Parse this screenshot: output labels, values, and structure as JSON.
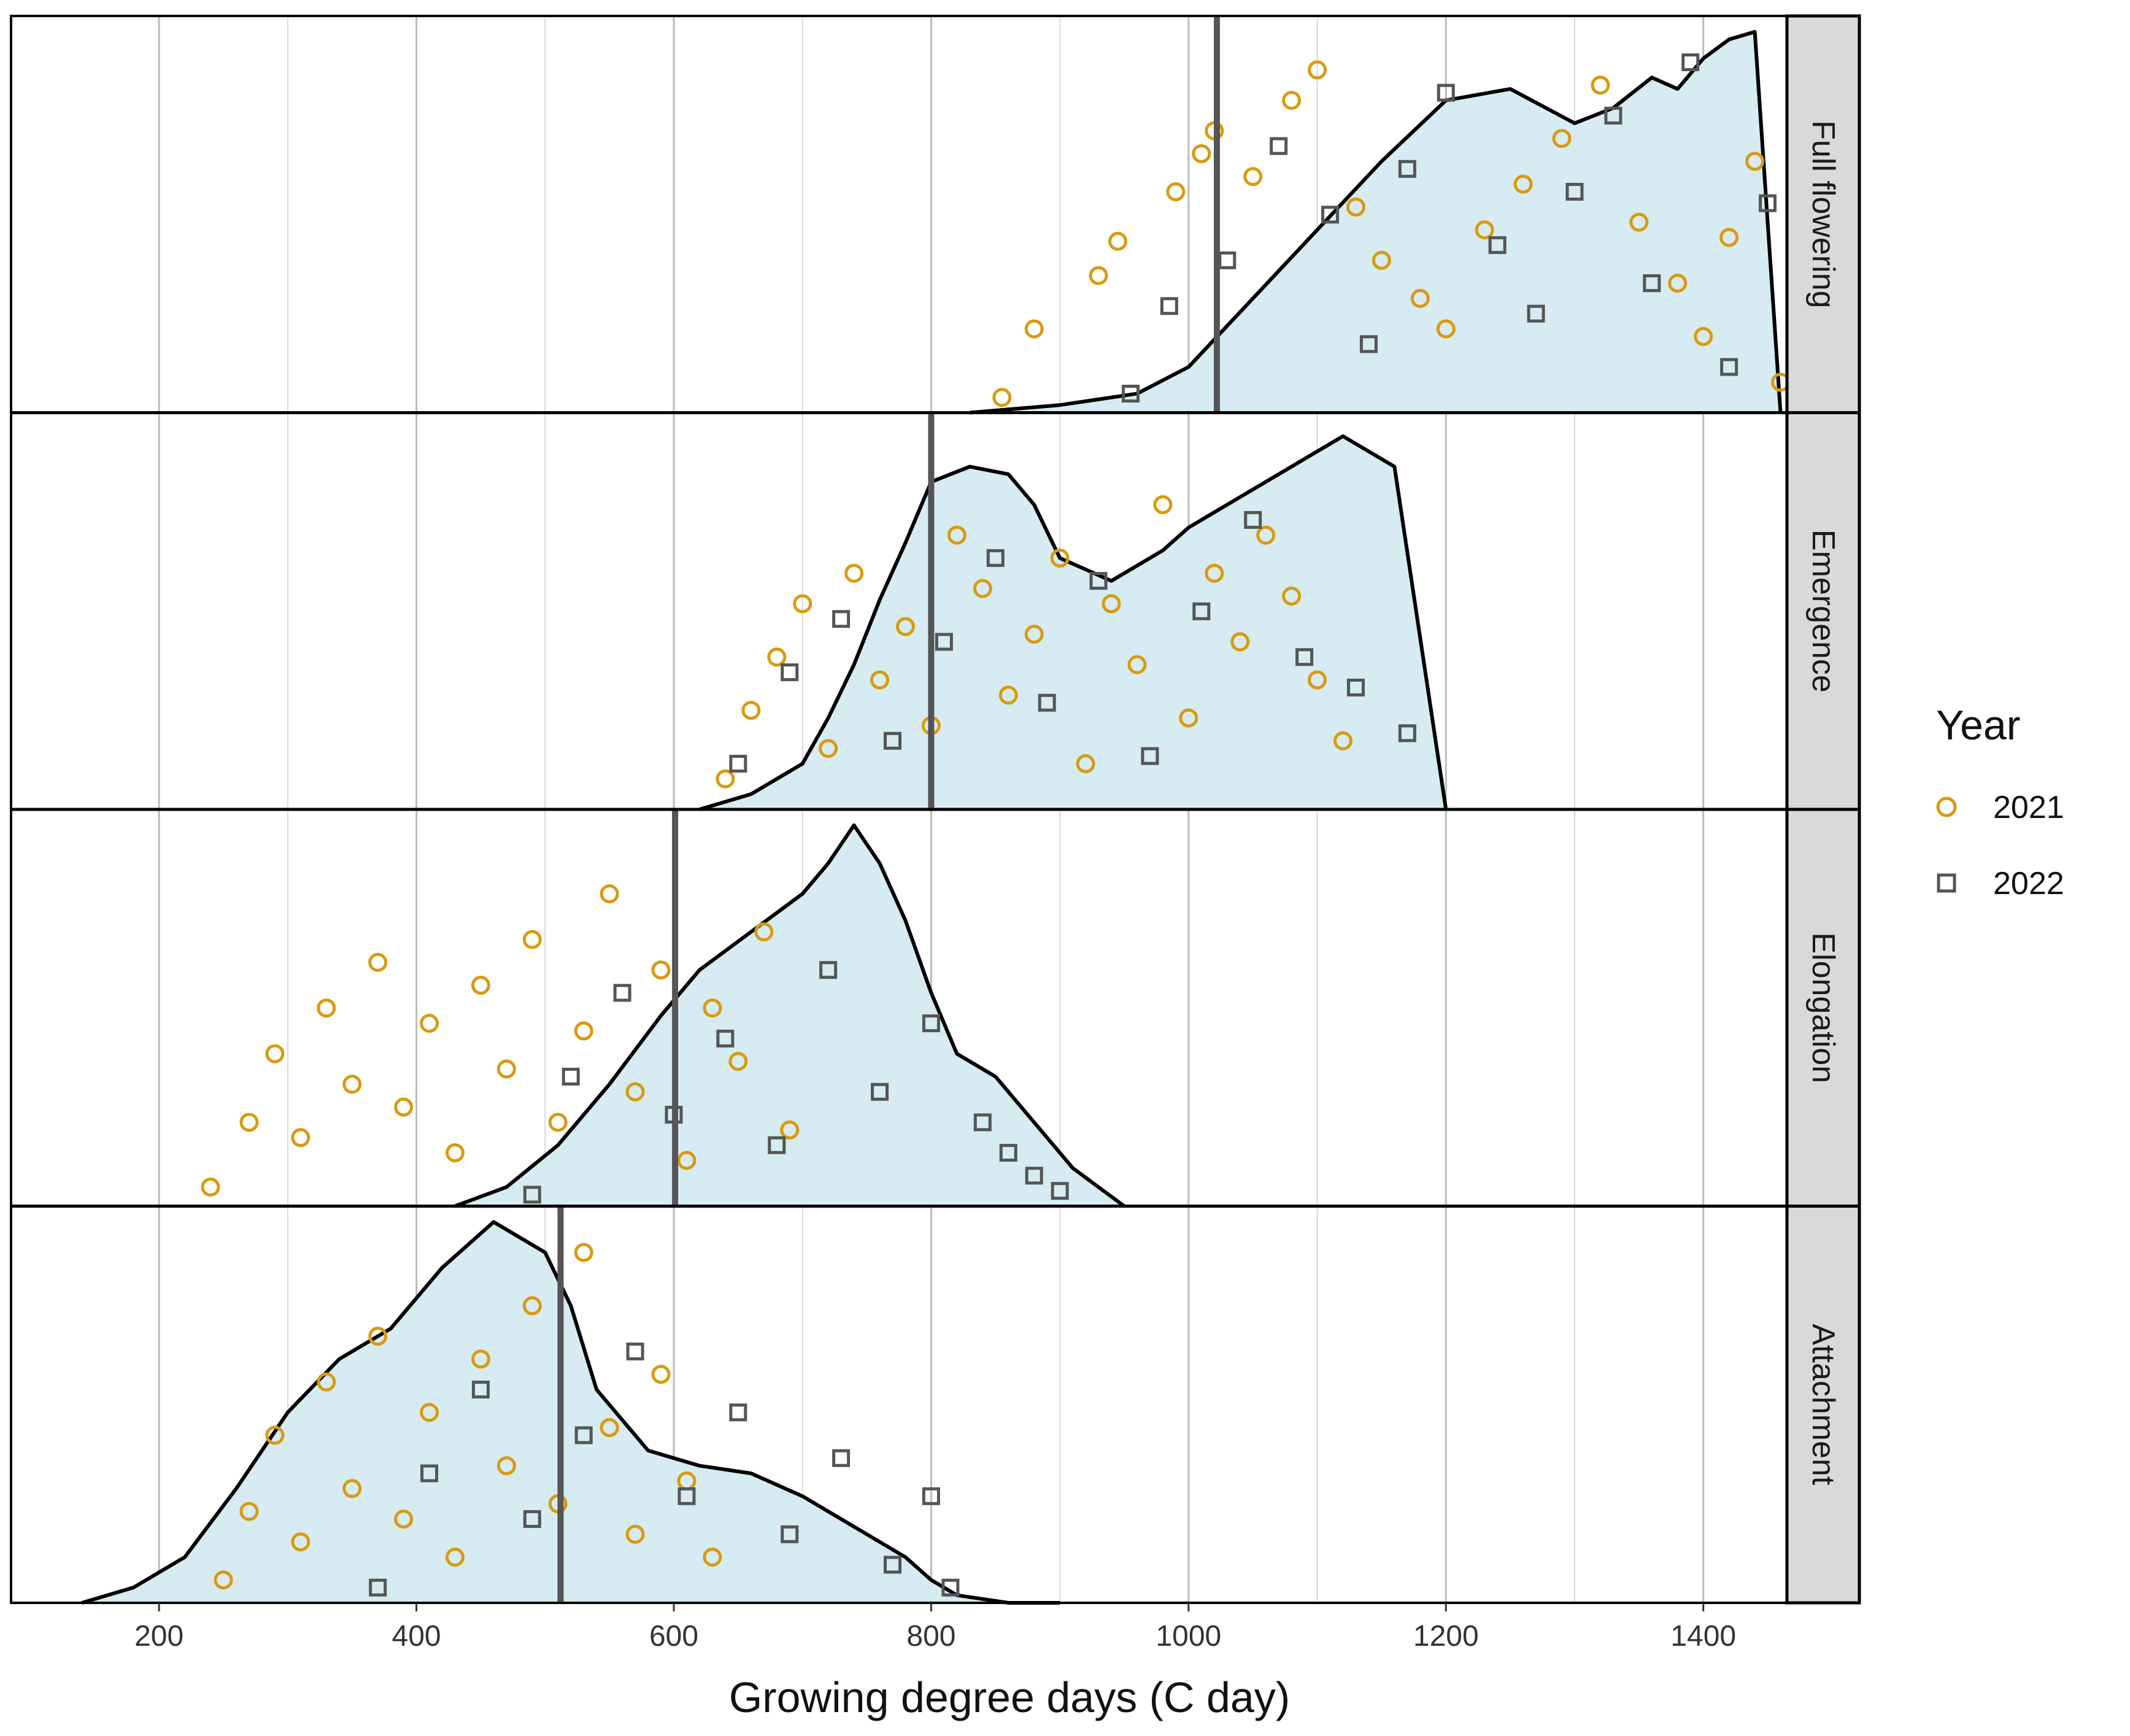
{
  "chart_data": {
    "type": "scatter",
    "subtype": "ridgeline-density-with-jittered-points",
    "title": "",
    "xlabel": "Growing degree days (C day)",
    "ylabel": "",
    "xlim": [
      85,
      1465
    ],
    "x_ticks": [
      200,
      400,
      600,
      800,
      1000,
      1200,
      1400
    ],
    "x_tick_labels": [
      "200",
      "400",
      "600",
      "800",
      "1000",
      "1200",
      "1400"
    ],
    "grid": true,
    "legend": {
      "title": "Year",
      "position": "right",
      "entries": [
        {
          "label": "2021",
          "shape": "circle",
          "color": "#d99a0f"
        },
        {
          "label": "2022",
          "shape": "square",
          "color": "#555555"
        }
      ]
    },
    "colors": {
      "density_fill": "#d6ebf2",
      "density_outline": "#000000",
      "median_line": "#555555",
      "strip_background": "#d9d9d9",
      "grid": "#bbbbbb",
      "year_2021": "#d99a0f",
      "year_2022": "#555555"
    },
    "panels": [
      {
        "stage": "Full flowering",
        "median": 1022,
        "density": {
          "x": [
            830,
            900,
            960,
            1000,
            1050,
            1100,
            1150,
            1200,
            1250,
            1300,
            1330,
            1360,
            1380,
            1400,
            1420,
            1440,
            1460
          ],
          "y": [
            0.0,
            0.02,
            0.05,
            0.12,
            0.3,
            0.48,
            0.66,
            0.82,
            0.85,
            0.76,
            0.8,
            0.88,
            0.85,
            0.93,
            0.98,
            1.0,
            0.0
          ]
        },
        "points_2021": [
          [
            855,
            0.04
          ],
          [
            880,
            0.22
          ],
          [
            930,
            0.36
          ],
          [
            945,
            0.45
          ],
          [
            990,
            0.58
          ],
          [
            1010,
            0.68
          ],
          [
            1020,
            0.74
          ],
          [
            1050,
            0.62
          ],
          [
            1080,
            0.82
          ],
          [
            1100,
            0.9
          ],
          [
            1130,
            0.54
          ],
          [
            1150,
            0.4
          ],
          [
            1180,
            0.3
          ],
          [
            1200,
            0.22
          ],
          [
            1230,
            0.48
          ],
          [
            1260,
            0.6
          ],
          [
            1290,
            0.72
          ],
          [
            1320,
            0.86
          ],
          [
            1350,
            0.5
          ],
          [
            1380,
            0.34
          ],
          [
            1400,
            0.2
          ],
          [
            1420,
            0.46
          ],
          [
            1440,
            0.66
          ],
          [
            1460,
            0.08
          ]
        ],
        "points_2022": [
          [
            955,
            0.05
          ],
          [
            985,
            0.28
          ],
          [
            1030,
            0.4
          ],
          [
            1070,
            0.7
          ],
          [
            1110,
            0.52
          ],
          [
            1140,
            0.18
          ],
          [
            1170,
            0.64
          ],
          [
            1200,
            0.84
          ],
          [
            1240,
            0.44
          ],
          [
            1270,
            0.26
          ],
          [
            1300,
            0.58
          ],
          [
            1330,
            0.78
          ],
          [
            1360,
            0.34
          ],
          [
            1390,
            0.92
          ],
          [
            1420,
            0.12
          ],
          [
            1450,
            0.55
          ]
        ]
      },
      {
        "stage": "Emergence",
        "median": 800,
        "density": {
          "x": [
            620,
            660,
            700,
            720,
            740,
            760,
            780,
            800,
            830,
            860,
            880,
            900,
            940,
            980,
            1000,
            1040,
            1080,
            1120,
            1160,
            1200
          ],
          "y": [
            0.0,
            0.04,
            0.12,
            0.24,
            0.38,
            0.55,
            0.7,
            0.86,
            0.9,
            0.88,
            0.8,
            0.66,
            0.6,
            0.68,
            0.74,
            0.82,
            0.9,
            0.98,
            0.9,
            0.0
          ]
        },
        "points_2021": [
          [
            640,
            0.08
          ],
          [
            660,
            0.26
          ],
          [
            680,
            0.4
          ],
          [
            700,
            0.54
          ],
          [
            720,
            0.16
          ],
          [
            740,
            0.62
          ],
          [
            760,
            0.34
          ],
          [
            780,
            0.48
          ],
          [
            800,
            0.22
          ],
          [
            820,
            0.72
          ],
          [
            840,
            0.58
          ],
          [
            860,
            0.3
          ],
          [
            880,
            0.46
          ],
          [
            900,
            0.66
          ],
          [
            920,
            0.12
          ],
          [
            940,
            0.54
          ],
          [
            960,
            0.38
          ],
          [
            980,
            0.8
          ],
          [
            1000,
            0.24
          ],
          [
            1020,
            0.62
          ],
          [
            1040,
            0.44
          ],
          [
            1060,
            0.72
          ],
          [
            1080,
            0.56
          ],
          [
            1100,
            0.34
          ],
          [
            1120,
            0.18
          ]
        ],
        "points_2022": [
          [
            650,
            0.12
          ],
          [
            690,
            0.36
          ],
          [
            730,
            0.5
          ],
          [
            770,
            0.18
          ],
          [
            810,
            0.44
          ],
          [
            850,
            0.66
          ],
          [
            890,
            0.28
          ],
          [
            930,
            0.6
          ],
          [
            970,
            0.14
          ],
          [
            1010,
            0.52
          ],
          [
            1050,
            0.76
          ],
          [
            1090,
            0.4
          ],
          [
            1130,
            0.32
          ],
          [
            1170,
            0.2
          ]
        ]
      },
      {
        "stage": "Elongation",
        "median": 601,
        "density": {
          "x": [
            430,
            470,
            510,
            550,
            590,
            620,
            660,
            700,
            720,
            740,
            760,
            780,
            800,
            820,
            850,
            880,
            910,
            950
          ],
          "y": [
            0.0,
            0.05,
            0.16,
            0.32,
            0.5,
            0.62,
            0.72,
            0.82,
            0.9,
            1.0,
            0.9,
            0.75,
            0.56,
            0.4,
            0.34,
            0.22,
            0.1,
            0.0
          ]
        },
        "points_2021": [
          [
            240,
            0.05
          ],
          [
            270,
            0.22
          ],
          [
            290,
            0.4
          ],
          [
            310,
            0.18
          ],
          [
            330,
            0.52
          ],
          [
            350,
            0.32
          ],
          [
            370,
            0.64
          ],
          [
            390,
            0.26
          ],
          [
            410,
            0.48
          ],
          [
            430,
            0.14
          ],
          [
            450,
            0.58
          ],
          [
            470,
            0.36
          ],
          [
            490,
            0.7
          ],
          [
            510,
            0.22
          ],
          [
            530,
            0.46
          ],
          [
            550,
            0.82
          ],
          [
            570,
            0.3
          ],
          [
            590,
            0.62
          ],
          [
            610,
            0.12
          ],
          [
            630,
            0.52
          ],
          [
            650,
            0.38
          ],
          [
            670,
            0.72
          ],
          [
            690,
            0.2
          ]
        ],
        "points_2022": [
          [
            490,
            0.03
          ],
          [
            520,
            0.34
          ],
          [
            560,
            0.56
          ],
          [
            600,
            0.24
          ],
          [
            640,
            0.44
          ],
          [
            680,
            0.16
          ],
          [
            720,
            0.62
          ],
          [
            760,
            0.3
          ],
          [
            800,
            0.48
          ],
          [
            840,
            0.22
          ],
          [
            860,
            0.14
          ],
          [
            880,
            0.08
          ],
          [
            900,
            0.04
          ]
        ]
      },
      {
        "stage": "Attachment",
        "median": 512,
        "density": {
          "x": [
            140,
            180,
            220,
            260,
            300,
            340,
            380,
            420,
            460,
            500,
            520,
            540,
            580,
            620,
            660,
            700,
            740,
            780,
            800,
            820,
            860,
            900
          ],
          "y": [
            0.0,
            0.04,
            0.12,
            0.3,
            0.5,
            0.64,
            0.72,
            0.88,
            1.0,
            0.92,
            0.78,
            0.56,
            0.4,
            0.36,
            0.34,
            0.28,
            0.2,
            0.12,
            0.06,
            0.02,
            0.0,
            0.0
          ]
        },
        "points_2021": [
          [
            250,
            0.06
          ],
          [
            270,
            0.24
          ],
          [
            290,
            0.44
          ],
          [
            310,
            0.16
          ],
          [
            330,
            0.58
          ],
          [
            350,
            0.3
          ],
          [
            370,
            0.7
          ],
          [
            390,
            0.22
          ],
          [
            410,
            0.5
          ],
          [
            430,
            0.12
          ],
          [
            450,
            0.64
          ],
          [
            470,
            0.36
          ],
          [
            490,
            0.78
          ],
          [
            510,
            0.26
          ],
          [
            530,
            0.92
          ],
          [
            550,
            0.46
          ],
          [
            570,
            0.18
          ],
          [
            590,
            0.6
          ],
          [
            610,
            0.32
          ],
          [
            630,
            0.12
          ]
        ],
        "points_2022": [
          [
            370,
            0.04
          ],
          [
            410,
            0.34
          ],
          [
            450,
            0.56
          ],
          [
            490,
            0.22
          ],
          [
            530,
            0.44
          ],
          [
            570,
            0.66
          ],
          [
            610,
            0.28
          ],
          [
            650,
            0.5
          ],
          [
            690,
            0.18
          ],
          [
            730,
            0.38
          ],
          [
            770,
            0.1
          ],
          [
            800,
            0.28
          ],
          [
            815,
            0.04
          ]
        ]
      }
    ]
  }
}
